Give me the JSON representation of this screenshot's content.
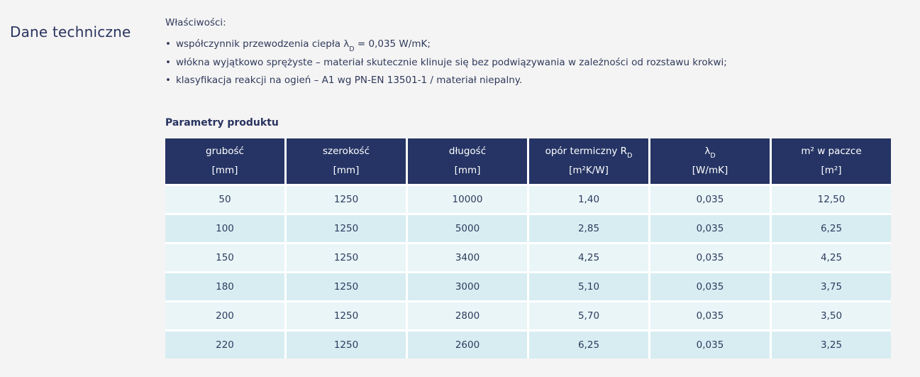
{
  "page": {
    "title": "Dane techniczne",
    "background_color": "#f5f4f4",
    "text_color": "#2e3a5c"
  },
  "properties": {
    "heading": "Właściwości:",
    "bullet_marker": "•",
    "bullets": [
      {
        "pre": "współczynnik przewodzenia ciepła λ",
        "sub": "D",
        "post": " = 0,035 W/mK;"
      },
      {
        "pre": "włókna wyjątkowo sprężyste – materiał skutecznie klinuje się bez podwiązywania w zależności od rozstawu krokwi;",
        "sub": "",
        "post": ""
      },
      {
        "pre": "klasyfikacja reakcji na ogień – A1 wg PN-EN 13501-1 / materiał niepalny.",
        "sub": "",
        "post": ""
      }
    ]
  },
  "table": {
    "title": "Parametry produktu",
    "colors": {
      "header_bg": "#253464",
      "header_text": "#ffffff",
      "row_light": "#e9f5f7",
      "row_dark": "#d7edf2",
      "cell_text": "#2d3c5e",
      "grid_lines": "#ffffff"
    },
    "columns": [
      {
        "label": "grubość",
        "label_sub": "",
        "unit": "[mm]"
      },
      {
        "label": "szerokość",
        "label_sub": "",
        "unit": "[mm]"
      },
      {
        "label": "długość",
        "label_sub": "",
        "unit": "[mm]"
      },
      {
        "label": "opór termiczny R",
        "label_sub": "D",
        "unit": "[m²K/W]"
      },
      {
        "label": "λ",
        "label_sub": "D",
        "unit": "[W/mK]"
      },
      {
        "label": "m² w paczce",
        "label_sub": "",
        "unit": "[m²]"
      }
    ],
    "rows": [
      [
        "50",
        "1250",
        "10000",
        "1,40",
        "0,035",
        "12,50"
      ],
      [
        "100",
        "1250",
        "5000",
        "2,85",
        "0,035",
        "6,25"
      ],
      [
        "150",
        "1250",
        "3400",
        "4,25",
        "0,035",
        "4,25"
      ],
      [
        "180",
        "1250",
        "3000",
        "5,10",
        "0,035",
        "3,75"
      ],
      [
        "200",
        "1250",
        "2800",
        "5,70",
        "0,035",
        "3,50"
      ],
      [
        "220",
        "1250",
        "2600",
        "6,25",
        "0,035",
        "3,25"
      ]
    ]
  }
}
